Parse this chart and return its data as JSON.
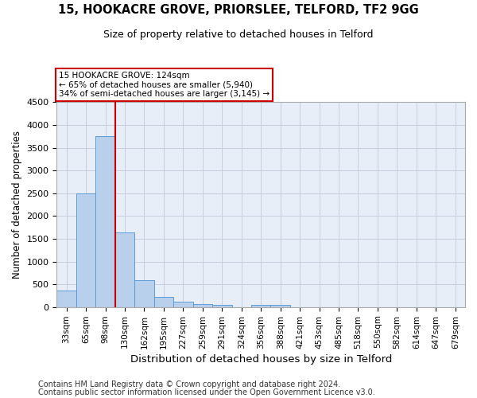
{
  "title1": "15, HOOKACRE GROVE, PRIORSLEE, TELFORD, TF2 9GG",
  "title2": "Size of property relative to detached houses in Telford",
  "xlabel": "Distribution of detached houses by size in Telford",
  "ylabel": "Number of detached properties",
  "footer1": "Contains HM Land Registry data © Crown copyright and database right 2024.",
  "footer2": "Contains public sector information licensed under the Open Government Licence v3.0.",
  "annotation_line1": "15 HOOKACRE GROVE: 124sqm",
  "annotation_line2": "← 65% of detached houses are smaller (5,940)",
  "annotation_line3": "34% of semi-detached houses are larger (3,145) →",
  "bar_categories": [
    "33sqm",
    "65sqm",
    "98sqm",
    "130sqm",
    "162sqm",
    "195sqm",
    "227sqm",
    "259sqm",
    "291sqm",
    "324sqm",
    "356sqm",
    "388sqm",
    "421sqm",
    "453sqm",
    "485sqm",
    "518sqm",
    "550sqm",
    "582sqm",
    "614sqm",
    "647sqm",
    "679sqm"
  ],
  "bar_values": [
    370,
    2500,
    3750,
    1640,
    590,
    230,
    110,
    70,
    55,
    0,
    55,
    50,
    0,
    0,
    0,
    0,
    0,
    0,
    0,
    0,
    0
  ],
  "bar_color": "#b8d0eb",
  "bar_edge_color": "#5b9bd5",
  "vline_color": "#cc0000",
  "vline_pos": 2.5,
  "ylim": [
    0,
    4500
  ],
  "yticks": [
    0,
    500,
    1000,
    1500,
    2000,
    2500,
    3000,
    3500,
    4000,
    4500
  ],
  "annotation_box_color": "#cc0000",
  "background_color": "#e8eef8",
  "grid_color": "#c8d0e0",
  "title1_fontsize": 10.5,
  "title2_fontsize": 9,
  "xlabel_fontsize": 9.5,
  "ylabel_fontsize": 8.5,
  "tick_fontsize": 7.5,
  "footer_fontsize": 7
}
